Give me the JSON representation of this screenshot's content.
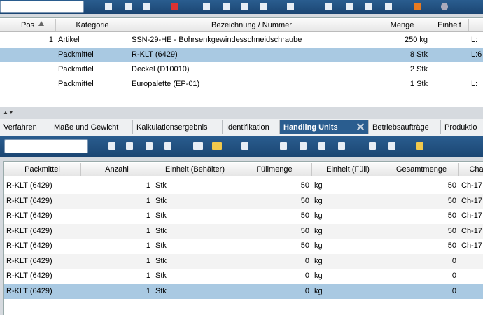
{
  "upper_table": {
    "columns": [
      "Pos",
      "Kategorie",
      "Bezeichnung / Nummer",
      "Menge",
      "Einheit"
    ],
    "rows": [
      [
        "1",
        "Artikel",
        "SSN-29-HE - Bohrsenkgewindesschneidschraube",
        "250 kg",
        null,
        "L:"
      ],
      [
        "",
        "Packmittel",
        "R-KLT (6429)",
        "8 Stk",
        null,
        "L:6"
      ],
      [
        null,
        "Packmittel",
        "Deckel (D10010)",
        "2 Stk",
        null,
        null
      ],
      [
        null,
        "Packmittel",
        "Europalette (EP-01)",
        "1 Stk",
        null,
        "L:"
      ]
    ]
  },
  "tabs": [
    "Verfahren",
    "Maße und Gewicht",
    "Kalkulationsergebnis",
    "Identifikation",
    "Handling Units",
    "Betriebsaufträge",
    "Produktio"
  ],
  "lower_table": {
    "columns": [
      "Packmittel",
      "Anzahl",
      "Einheit (Behälter)",
      "Füllmenge",
      "Einheit (Füll)",
      "Gesamtmenge",
      "Cha"
    ],
    "rows": [
      [
        "R-KLT (6429)",
        "1",
        "Stk",
        "50",
        "kg",
        "50",
        "Ch-17"
      ],
      [
        "R-KLT (6429)",
        "1",
        "Stk",
        "50",
        "kg",
        "50",
        "Ch-17"
      ],
      [
        "R-KLT (6429)",
        "1",
        "Stk",
        "50",
        "kg",
        "50",
        "Ch-17"
      ],
      [
        "R-KLT (6429)",
        "1",
        "Stk",
        "50",
        "kg",
        "50",
        "Ch-17"
      ],
      [
        "R-KLT (6429)",
        "1",
        "Stk",
        "50",
        "kg",
        "50",
        "Ch-17"
      ],
      [
        "R-KLT (6429)",
        "1",
        "Stk",
        "0",
        "kg",
        "0",
        null
      ],
      [
        "R-KLT (6429)",
        "1",
        "Stk",
        "0",
        "kg",
        "0",
        null
      ],
      [
        "R-KLT (6429)",
        "1",
        "Stk",
        "0",
        "kg",
        "0",
        null
      ]
    ]
  }
}
